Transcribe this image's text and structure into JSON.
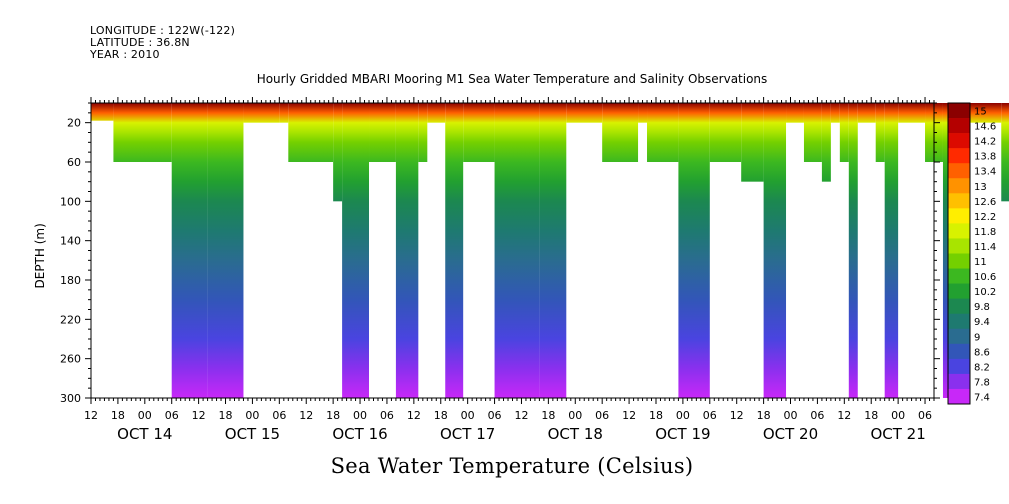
{
  "header": {
    "longitude": "LONGITUDE : 122W(-122)",
    "latitude": "LATITUDE : 36.8N",
    "year": "YEAR : 2010",
    "title": "Hourly Gridded MBARI Mooring M1 Sea Water Temperature and Salinity Observations"
  },
  "chart_data": {
    "type": "heatmap",
    "title": "Hourly Gridded MBARI Mooring M1 Sea Water Temperature and Salinity Observations",
    "xlabel": "",
    "ylabel": "DEPTH (m)",
    "colorbar_title": "Sea Water Temperature (Celsius)",
    "x_start": "2010-10-13T12:00",
    "x_end": "2010-10-21T08:00",
    "ylim": [
      0,
      300
    ],
    "y_inverted": true,
    "y_ticks": [
      20,
      60,
      100,
      140,
      180,
      220,
      260,
      300
    ],
    "hour_tick_labels": [
      "12",
      "18",
      "00",
      "06",
      "12",
      "18",
      "00",
      "06",
      "12",
      "18",
      "00",
      "06",
      "12",
      "18",
      "00",
      "06",
      "12",
      "18",
      "00",
      "06",
      "12",
      "18",
      "00",
      "06",
      "12",
      "18",
      "00",
      "06",
      "12",
      "18",
      "00",
      "06"
    ],
    "day_labels": [
      "OCT 14",
      "OCT 15",
      "OCT 16",
      "OCT 17",
      "OCT 18",
      "OCT 19",
      "OCT 20",
      "OCT 21"
    ],
    "colorbar_levels": [
      15,
      14.6,
      14.2,
      13.8,
      13.4,
      13,
      12.6,
      12.2,
      11.8,
      11.4,
      11,
      10.6,
      10.2,
      9.8,
      9.4,
      9,
      8.6,
      8.2,
      7.8,
      7.4
    ],
    "colorbar_colors": [
      "#8b0000",
      "#b40000",
      "#dc0a00",
      "#ff2a00",
      "#ff6000",
      "#ff9200",
      "#ffc000",
      "#ffee00",
      "#d8f200",
      "#a8e400",
      "#74d000",
      "#3cb820",
      "#22a030",
      "#1c8850",
      "#1e7a70",
      "#2a6c90",
      "#3256b8",
      "#4a44e0",
      "#8a30ee",
      "#c828f8"
    ],
    "profile_depth_m": [
      0,
      10,
      20,
      30,
      40,
      60,
      80,
      100,
      130,
      160,
      200,
      240,
      270,
      300
    ],
    "profile_temp_c": [
      14.8,
      13.6,
      11.8,
      11.3,
      11.0,
      10.6,
      10.1,
      9.9,
      9.6,
      9.2,
      8.7,
      8.2,
      7.9,
      7.5
    ],
    "data_segments_hours": [
      [
        [
          0,
          5,
          0,
          18
        ],
        [
          5,
          18,
          0,
          60
        ],
        [
          18,
          26,
          0,
          300
        ]
      ],
      [
        [
          26,
          34,
          0,
          300
        ]
      ],
      [
        [
          34,
          42,
          0,
          20
        ]
      ],
      [
        [
          42,
          44,
          0,
          20
        ]
      ],
      [
        [
          44,
          54,
          0,
          60
        ],
        [
          54,
          56,
          0,
          100
        ],
        [
          56,
          62,
          0,
          300
        ]
      ],
      [
        [
          62,
          68,
          0,
          60
        ]
      ],
      [
        [
          68,
          73,
          0,
          300
        ]
      ],
      [
        [
          73,
          75,
          0,
          60
        ]
      ],
      [
        [
          75,
          79,
          0,
          20
        ]
      ],
      [
        [
          79,
          83,
          0,
          300
        ]
      ],
      [
        [
          83,
          90,
          0,
          60
        ]
      ],
      [
        [
          90,
          100,
          0,
          300
        ]
      ],
      [
        [
          100,
          106,
          0,
          300
        ]
      ],
      [
        [
          106,
          114,
          0,
          20
        ]
      ],
      [
        [
          114,
          122,
          0,
          60
        ]
      ],
      [
        [
          122,
          124,
          0,
          20
        ]
      ],
      [
        [
          124,
          131,
          0,
          60
        ]
      ],
      [
        [
          131,
          138,
          0,
          300
        ]
      ],
      [
        [
          138,
          145,
          0,
          60
        ],
        [
          145,
          150,
          0,
          80
        ]
      ],
      [
        [
          150,
          155,
          0,
          300
        ]
      ],
      [
        [
          155,
          159,
          0,
          20
        ]
      ],
      [
        [
          159,
          163,
          0,
          60
        ],
        [
          163,
          165,
          0,
          80
        ]
      ],
      [
        [
          165,
          167,
          0,
          20
        ]
      ],
      [
        [
          167,
          169,
          0,
          60
        ],
        [
          169,
          171,
          0,
          300
        ]
      ],
      [
        [
          171,
          175,
          0,
          20
        ]
      ],
      [
        [
          175,
          177,
          0,
          60
        ]
      ],
      [
        [
          177,
          180,
          0,
          300
        ]
      ],
      [
        [
          180,
          186,
          0,
          20
        ]
      ],
      [
        [
          186,
          190,
          0,
          60
        ]
      ],
      [
        [
          190,
          196,
          0,
          300
        ]
      ],
      [
        [
          196,
          203,
          0,
          20
        ]
      ],
      [
        [
          203,
          211,
          0,
          100
        ]
      ],
      [
        [
          211,
          220,
          0,
          300
        ]
      ],
      [
        [
          220,
          223,
          0,
          60
        ]
      ],
      [
        [
          223,
          226,
          0,
          20
        ]
      ],
      [
        [
          226,
          228,
          0,
          300
        ]
      ],
      [
        [
          228,
          234,
          0,
          20
        ]
      ],
      [
        [
          234,
          243,
          0,
          100
        ]
      ],
      [
        [
          243,
          249,
          0,
          300
        ]
      ],
      [
        [
          249,
          255,
          0,
          20
        ]
      ],
      [
        [
          255,
          259,
          0,
          60
        ]
      ],
      [
        [
          259,
          265,
          0,
          300
        ]
      ],
      [
        [
          265,
          273,
          0,
          60
        ]
      ],
      [
        [
          273,
          276,
          0,
          20
        ]
      ],
      [
        [
          276,
          281,
          0,
          60
        ]
      ],
      [
        [
          281,
          284,
          0,
          80
        ],
        [
          284,
          287,
          0,
          300
        ]
      ],
      [
        [
          287,
          290,
          0,
          60
        ]
      ],
      [
        [
          290,
          296,
          0,
          300
        ]
      ],
      [
        [
          296,
          301,
          0,
          60
        ]
      ],
      [
        [
          301,
          304,
          0,
          100
        ],
        [
          304,
          306,
          0,
          300
        ]
      ],
      [
        [
          306,
          311,
          0,
          60
        ]
      ],
      [
        [
          311,
          319,
          0,
          100
        ]
      ],
      [
        [
          319,
          326,
          0,
          60
        ]
      ],
      [
        [
          326,
          328,
          0,
          100
        ],
        [
          328,
          340,
          0,
          300
        ]
      ],
      [
        [
          340,
          346,
          0,
          100
        ]
      ],
      [
        [
          346,
          351,
          0,
          300
        ]
      ],
      [
        [
          351,
          353,
          0,
          60
        ]
      ],
      [
        [
          353,
          356,
          0,
          20
        ]
      ],
      [
        [
          356,
          361,
          0,
          60
        ]
      ],
      [
        [
          361,
          366,
          0,
          20
        ]
      ],
      [
        [
          366,
          372,
          0,
          60
        ],
        [
          372,
          374,
          0,
          100
        ],
        [
          374,
          377,
          0,
          300
        ]
      ],
      [
        [
          377,
          381,
          0,
          300
        ]
      ],
      [
        [
          381,
          383,
          0,
          100
        ],
        [
          383,
          386,
          0,
          300
        ]
      ],
      [
        [
          386,
          390,
          0,
          60
        ]
      ],
      [
        [
          390,
          393,
          0,
          20
        ]
      ],
      [
        [
          393,
          398,
          0,
          60
        ]
      ],
      [
        [
          398,
          404,
          0,
          100
        ]
      ],
      [
        [
          404,
          406,
          0,
          300
        ]
      ],
      [
        [
          406,
          410,
          0,
          300
        ]
      ]
    ]
  }
}
